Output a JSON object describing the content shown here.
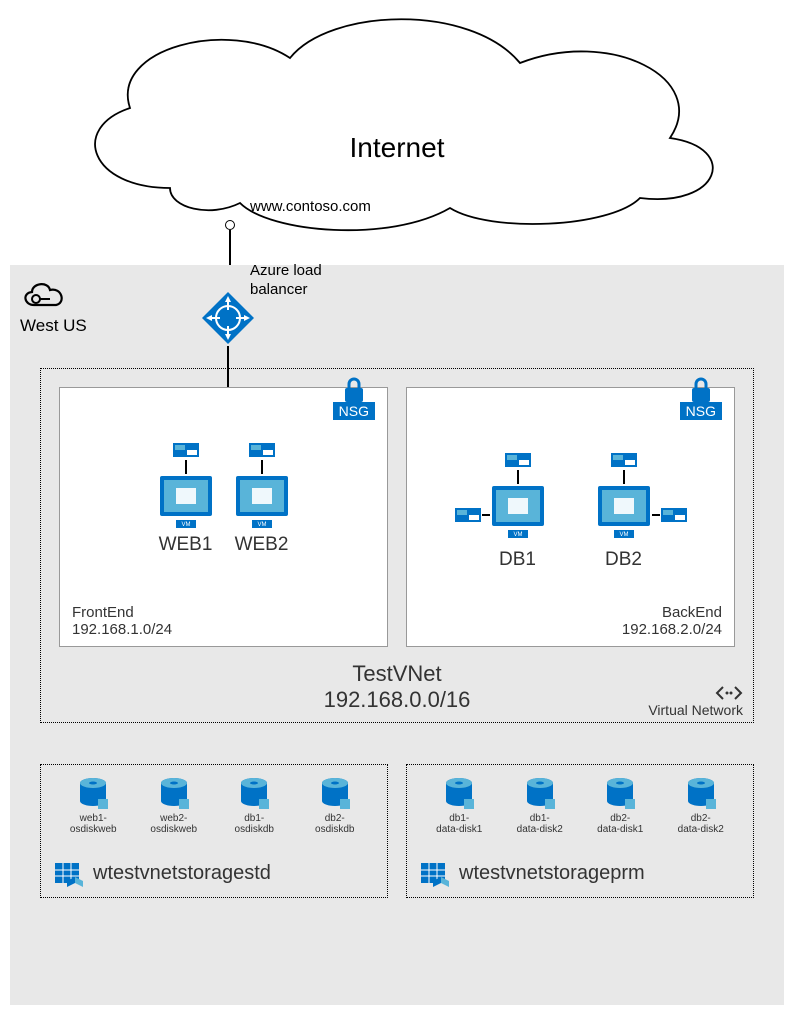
{
  "colors": {
    "azure_blue": "#0072c6",
    "region_bg": "#e8e8e8",
    "subnet_bg": "#ffffff",
    "border": "#999999",
    "text": "#333333"
  },
  "internet": {
    "label": "Internet"
  },
  "url": "www.contoso.com",
  "loadbalancer": {
    "label": "Azure load\nbalancer"
  },
  "region": {
    "label": "West US"
  },
  "vnet": {
    "name": "TestVNet",
    "cidr": "192.168.0.0/16",
    "corner_label": "Virtual Network"
  },
  "subnets": {
    "frontend": {
      "nsg": "NSG",
      "name": "FrontEnd",
      "cidr": "192.168.1.0/24",
      "vms": [
        {
          "label": "WEB1"
        },
        {
          "label": "WEB2"
        }
      ]
    },
    "backend": {
      "nsg": "NSG",
      "name": "BackEnd",
      "cidr": "192.168.2.0/24",
      "vms": [
        {
          "label": "DB1"
        },
        {
          "label": "DB2"
        }
      ]
    }
  },
  "storage": {
    "std": {
      "name": "wtestvnetstoragestd",
      "disks": [
        {
          "label": "web1-\nosdiskweb"
        },
        {
          "label": "web2-\nosdiskweb"
        },
        {
          "label": "db1-\nosdiskdb"
        },
        {
          "label": "db2-\nosdiskdb"
        }
      ]
    },
    "prm": {
      "name": "wtestvnetstorageprm",
      "disks": [
        {
          "label": "db1-\ndata-disk1"
        },
        {
          "label": "db1-\ndata-disk2"
        },
        {
          "label": "db2-\ndata-disk1"
        },
        {
          "label": "db2-\ndata-disk2"
        }
      ]
    }
  }
}
